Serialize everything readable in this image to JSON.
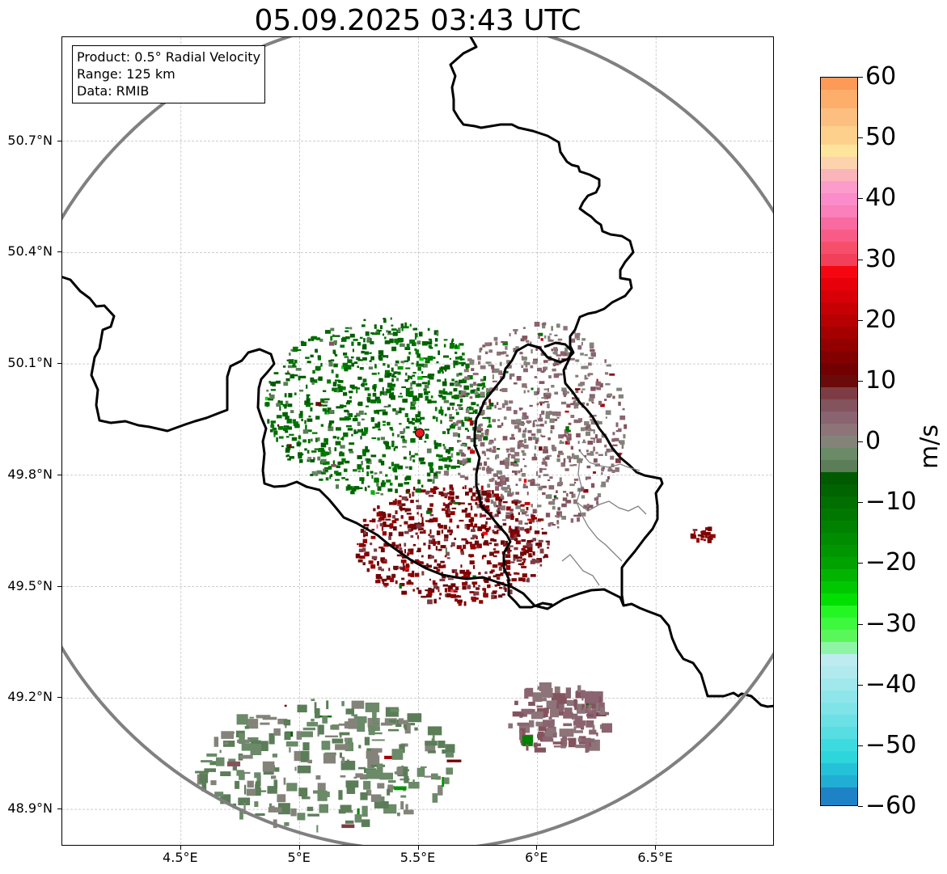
{
  "title": "05.09.2025 03:43 UTC",
  "info_box": {
    "product": "Product: 0.5° Radial Velocity",
    "range": "Range: 125 km",
    "data": "Data: RMIB"
  },
  "map": {
    "lat_ticks": [
      "50.7°N",
      "50.4°N",
      "50.1°N",
      "49.8°N",
      "49.5°N",
      "49.2°N",
      "48.9°N"
    ],
    "lon_ticks": [
      "4.5°E",
      "5°E",
      "5.5°E",
      "6°E",
      "6.5°E"
    ],
    "lat_values": [
      50.7,
      50.4,
      50.1,
      49.8,
      49.5,
      49.2,
      48.9
    ],
    "lon_values": [
      4.5,
      5.0,
      5.5,
      6.0,
      6.5
    ],
    "extent": {
      "lon_min": 4.0,
      "lon_max": 7.0,
      "lat_min": 48.8,
      "lat_max": 50.98
    },
    "radar_site": {
      "lon": 5.505,
      "lat": 49.914,
      "marker_color": "#e41a1c"
    },
    "range_ring_km": 125,
    "range_ring_color": "#808080",
    "border_color": "#000000",
    "subborder_color": "#808080",
    "grid": true,
    "echo_areas": [
      {
        "region": "north-west cluster",
        "dominant_velocity_ms": -8
      },
      {
        "region": "center-east cluster",
        "dominant_velocity_ms": 3
      },
      {
        "region": "south-center cluster",
        "dominant_velocity_ms": 12
      },
      {
        "region": "far south cluster",
        "dominant_velocity_ms": -2
      },
      {
        "region": "south-east cluster",
        "dominant_velocity_ms": 4
      },
      {
        "region": "east isolated cell",
        "dominant_velocity_ms": 14
      }
    ]
  },
  "colorbar": {
    "unit": "m/s",
    "min": -60,
    "max": 60,
    "tick_labels": [
      "60",
      "50",
      "40",
      "30",
      "20",
      "10",
      "0",
      "−10",
      "−20",
      "−30",
      "−40",
      "−50",
      "−60"
    ],
    "tick_values": [
      60,
      50,
      40,
      30,
      20,
      10,
      0,
      -10,
      -20,
      -30,
      -40,
      -50,
      -60
    ],
    "stops": [
      {
        "from": 58,
        "to": 60,
        "color": "#fd9a57"
      },
      {
        "from": 55,
        "to": 58,
        "color": "#fdae6b"
      },
      {
        "from": 52,
        "to": 55,
        "color": "#fdbf80"
      },
      {
        "from": 49,
        "to": 52,
        "color": "#fdd08b"
      },
      {
        "from": 47,
        "to": 49,
        "color": "#fde69b"
      },
      {
        "from": 45,
        "to": 47,
        "color": "#fdd3ae"
      },
      {
        "from": 43,
        "to": 45,
        "color": "#fbb4b9"
      },
      {
        "from": 41,
        "to": 43,
        "color": "#fc9ccb"
      },
      {
        "from": 39,
        "to": 41,
        "color": "#fb8cc9"
      },
      {
        "from": 37,
        "to": 39,
        "color": "#fa7fba"
      },
      {
        "from": 35,
        "to": 37,
        "color": "#f86aa0"
      },
      {
        "from": 33,
        "to": 35,
        "color": "#f85c86"
      },
      {
        "from": 31,
        "to": 33,
        "color": "#f74f6b"
      },
      {
        "from": 29,
        "to": 31,
        "color": "#f3405a"
      },
      {
        "from": 27,
        "to": 29,
        "color": "#f50610"
      },
      {
        "from": 25,
        "to": 27,
        "color": "#e70009"
      },
      {
        "from": 23,
        "to": 25,
        "color": "#d80006"
      },
      {
        "from": 21,
        "to": 23,
        "color": "#c70004"
      },
      {
        "from": 19,
        "to": 21,
        "color": "#b60002"
      },
      {
        "from": 17,
        "to": 19,
        "color": "#a50000"
      },
      {
        "from": 15,
        "to": 17,
        "color": "#930000"
      },
      {
        "from": 13,
        "to": 15,
        "color": "#820000"
      },
      {
        "from": 11,
        "to": 13,
        "color": "#730000"
      },
      {
        "from": 9,
        "to": 11,
        "color": "#6b0a0a"
      },
      {
        "from": 7,
        "to": 9,
        "color": "#7d3c44"
      },
      {
        "from": 5,
        "to": 7,
        "color": "#84545e"
      },
      {
        "from": 3,
        "to": 5,
        "color": "#8a6470"
      },
      {
        "from": 1,
        "to": 3,
        "color": "#8c7478"
      },
      {
        "from": -1,
        "to": 1,
        "color": "#83837a"
      },
      {
        "from": -3,
        "to": -1,
        "color": "#6a8a68"
      },
      {
        "from": -5,
        "to": -3,
        "color": "#5b7d58"
      },
      {
        "from": -7,
        "to": -5,
        "color": "#005b00"
      },
      {
        "from": -9,
        "to": -7,
        "color": "#006400"
      },
      {
        "from": -11,
        "to": -9,
        "color": "#006e00"
      },
      {
        "from": -13,
        "to": -11,
        "color": "#007800"
      },
      {
        "from": -15,
        "to": -13,
        "color": "#008200"
      },
      {
        "from": -17,
        "to": -15,
        "color": "#008c00"
      },
      {
        "from": -19,
        "to": -17,
        "color": "#009600"
      },
      {
        "from": -21,
        "to": -19,
        "color": "#00a200"
      },
      {
        "from": -23,
        "to": -21,
        "color": "#00b400"
      },
      {
        "from": -25,
        "to": -23,
        "color": "#00c800"
      },
      {
        "from": -27,
        "to": -25,
        "color": "#00e000"
      },
      {
        "from": -29,
        "to": -27,
        "color": "#24f624"
      },
      {
        "from": -31,
        "to": -29,
        "color": "#3ef83e"
      },
      {
        "from": -33,
        "to": -31,
        "color": "#5af75a"
      },
      {
        "from": -35,
        "to": -33,
        "color": "#8ef5a6"
      },
      {
        "from": -37,
        "to": -35,
        "color": "#bdebf0"
      },
      {
        "from": -39,
        "to": -37,
        "color": "#b0eaef"
      },
      {
        "from": -41,
        "to": -39,
        "color": "#a0e8ec"
      },
      {
        "from": -43,
        "to": -41,
        "color": "#8fe6ea"
      },
      {
        "from": -45,
        "to": -43,
        "color": "#7ee4e8"
      },
      {
        "from": -47,
        "to": -45,
        "color": "#6be1e6"
      },
      {
        "from": -49,
        "to": -47,
        "color": "#56dee3"
      },
      {
        "from": -51,
        "to": -49,
        "color": "#3cdbe0"
      },
      {
        "from": -53,
        "to": -51,
        "color": "#2cd6dc"
      },
      {
        "from": -55,
        "to": -53,
        "color": "#24c2d8"
      },
      {
        "from": -57,
        "to": -55,
        "color": "#20aed4"
      },
      {
        "from": -60,
        "to": -57,
        "color": "#1e82c6"
      }
    ]
  }
}
